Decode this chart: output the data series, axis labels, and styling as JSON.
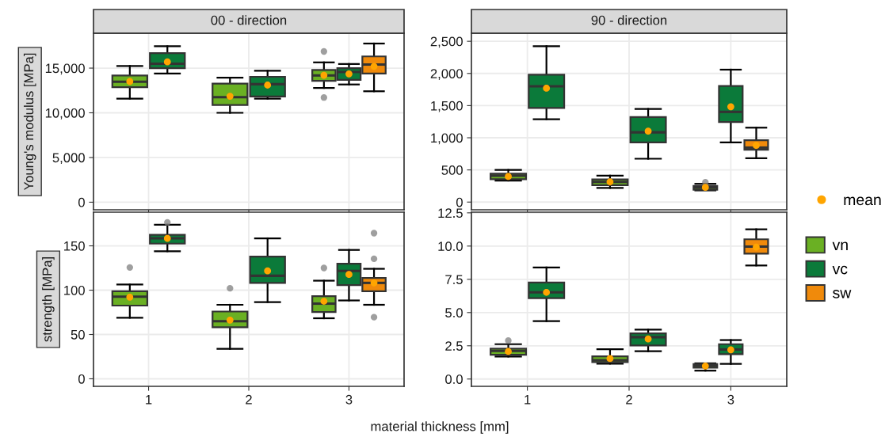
{
  "chart_data": [
    {
      "type": "box",
      "title": "00 - direction",
      "ylabel": "Young's modulus [MPa]",
      "categories": [
        "1",
        "2",
        "3"
      ],
      "tick_labels": "y",
      "grid": true,
      "ylim": [
        -850,
        18900
      ],
      "yticks": [
        {
          "value": 0,
          "label": "0"
        },
        {
          "value": 5000,
          "label": "5,000"
        },
        {
          "value": 10000,
          "label": "10,000"
        },
        {
          "value": 15000,
          "label": "15,000"
        }
      ],
      "series": [
        {
          "type": "scatter",
          "color": "#ffa500",
          "x": [
            "1",
            "1",
            "2",
            "2",
            "3",
            "3",
            "3"
          ],
          "values": [
            13500,
            15700,
            11850,
            13100,
            14200,
            14350,
            15200
          ]
        },
        {
          "color": "#6ab023",
          "boxes": [
            {
              "low": 11590,
              "q1": 12870,
              "median": 13480,
              "q3": 14180,
              "high": 15245
            },
            {
              "low": 10000,
              "q1": 10880,
              "median": 11740,
              "q3": 13260,
              "high": 13930
            },
            {
              "low": 12780,
              "q1": 13570,
              "median": 14180,
              "q3": 14790,
              "high": 15640,
              "outliers": [
                16860,
                11710
              ]
            }
          ]
        },
        {
          "color": "#0b7a3a",
          "boxes": [
            {
              "low": 14390,
              "q1": 15000,
              "median": 15490,
              "q3": 16680,
              "high": 17440
            },
            {
              "low": 11590,
              "q1": 11830,
              "median": 13200,
              "q3": 14030,
              "high": 14700
            },
            {
              "low": 13170,
              "q1": 13690,
              "median": 14570,
              "q3": 15000,
              "high": 15460
            }
          ]
        },
        {
          "color": "#f08a0b",
          "boxes": [
            null,
            null,
            {
              "low": 12410,
              "q1": 14390,
              "median": 15400,
              "q3": 16310,
              "high": 17750
            }
          ]
        }
      ]
    },
    {
      "type": "box",
      "title": "90 - direction",
      "categories": [
        "1",
        "2",
        "3"
      ],
      "tick_labels": "y",
      "grid": true,
      "ylim": [
        -120,
        2625
      ],
      "yticks": [
        {
          "value": 0,
          "label": "0"
        },
        {
          "value": 500,
          "label": "500"
        },
        {
          "value": 1000,
          "label": "1,000"
        },
        {
          "value": 1500,
          "label": "1,500"
        },
        {
          "value": 2000,
          "label": "2,000"
        },
        {
          "value": 2500,
          "label": "2,500"
        }
      ],
      "series": [
        {
          "type": "scatter",
          "color": "#ffa500",
          "x": [
            "1",
            "1",
            "2",
            "2",
            "3",
            "3",
            "3"
          ],
          "values": [
            398,
            1771,
            314,
            1102,
            229,
            1483,
            881
          ]
        },
        {
          "color": "#6ab023",
          "boxes": [
            {
              "low": 335,
              "q1": 356,
              "median": 411,
              "q3": 441,
              "high": 500
            },
            {
              "low": 220,
              "q1": 263,
              "median": 314,
              "q3": 352,
              "high": 411
            },
            {
              "low": 182,
              "q1": 191,
              "median": 225,
              "q3": 250,
              "high": 284,
              "outliers": [
                309
              ]
            }
          ]
        },
        {
          "color": "#0b7a3a",
          "boxes": [
            {
              "low": 1288,
              "q1": 1462,
              "median": 1801,
              "q3": 1979,
              "high": 2424
            },
            {
              "low": 674,
              "q1": 928,
              "median": 1085,
              "q3": 1322,
              "high": 1449
            },
            {
              "low": 928,
              "q1": 1246,
              "median": 1402,
              "q3": 1805,
              "high": 2059
            }
          ]
        },
        {
          "color": "#f08a0b",
          "boxes": [
            null,
            null,
            {
              "low": 682,
              "q1": 813,
              "median": 847,
              "q3": 962,
              "high": 1157
            }
          ]
        }
      ]
    },
    {
      "type": "box",
      "ylabel": "strength [MPa]",
      "xlabel": "material thickness [mm]",
      "categories": [
        "1",
        "2",
        "3"
      ],
      "grid": true,
      "ylim": [
        -8.5,
        188
      ],
      "yticks": [
        0,
        50,
        100,
        150
      ],
      "series": [
        {
          "type": "scatter",
          "color": "#ffa500",
          "x": [
            "1",
            "1",
            "2",
            "2",
            "3",
            "3",
            "3"
          ],
          "values": [
            92.1,
            158.5,
            66.2,
            121.7,
            87.5,
            117.7,
            108.2
          ]
        },
        {
          "color": "#6ab023",
          "boxes": [
            {
              "low": 68.9,
              "q1": 82.6,
              "median": 92.7,
              "q3": 98.8,
              "high": 106.4,
              "outliers": [
                125.6
              ]
            },
            {
              "low": 33.8,
              "q1": 58.2,
              "median": 64.9,
              "q3": 75.9,
              "high": 83.5,
              "outliers": [
                102.1
              ]
            },
            {
              "low": 68.3,
              "q1": 75.3,
              "median": 84.8,
              "q3": 93.3,
              "high": 110.7,
              "outliers": [
                125
              ]
            }
          ]
        },
        {
          "color": "#0b7a3a",
          "boxes": [
            {
              "low": 143.9,
              "q1": 152.5,
              "median": 158.5,
              "q3": 162.5,
              "high": 173.8,
              "outliers": [
                176.5
              ]
            },
            {
              "low": 86.6,
              "q1": 108.2,
              "median": 116.2,
              "q3": 137.8,
              "high": 158.5
            },
            {
              "low": 88.4,
              "q1": 105.8,
              "median": 121.7,
              "q3": 129.9,
              "high": 145.4
            }
          ]
        },
        {
          "color": "#f08a0b",
          "boxes": [
            null,
            null,
            {
              "low": 83.5,
              "q1": 98.8,
              "median": 108.2,
              "q3": 113.7,
              "high": 124.1,
              "outliers": [
                164.3,
                135.4,
                69.5
              ]
            }
          ]
        }
      ]
    },
    {
      "type": "box",
      "categories": [
        "1",
        "2",
        "3"
      ],
      "grid": true,
      "legend": "right",
      "ylim": [
        -0.55,
        12.55
      ],
      "yticks": [
        {
          "value": 0,
          "label": "0.0"
        },
        {
          "value": 2.5,
          "label": "2.5"
        },
        {
          "value": 5,
          "label": "5.0"
        },
        {
          "value": 7.5,
          "label": "7.5"
        },
        {
          "value": 10,
          "label": "10.0"
        },
        {
          "value": 12.5,
          "label": "12.5"
        }
      ],
      "series": [
        {
          "name": "mean",
          "type": "scatter",
          "color": "#ffa500",
          "x": [
            "1",
            "1",
            "2",
            "2",
            "3",
            "3",
            "3"
          ],
          "values": [
            2.07,
            6.52,
            1.54,
            3.01,
            0.98,
            2.2,
            9.92
          ]
        },
        {
          "name": "vn",
          "color": "#6ab023",
          "boxes": [
            {
              "low": 1.69,
              "q1": 1.83,
              "median": 2.11,
              "q3": 2.28,
              "high": 2.62,
              "outliers": [
                2.89
              ]
            },
            {
              "low": 1.16,
              "q1": 1.28,
              "median": 1.42,
              "q3": 1.71,
              "high": 2.24
            },
            {
              "low": 0.63,
              "q1": 0.85,
              "median": 0.98,
              "q3": 1.12,
              "high": 1.18
            }
          ]
        },
        {
          "name": "vc",
          "color": "#0b7a3a",
          "boxes": [
            {
              "low": 4.35,
              "q1": 6.08,
              "median": 6.52,
              "q3": 7.26,
              "high": 8.39
            },
            {
              "low": 2.09,
              "q1": 2.52,
              "median": 3.15,
              "q3": 3.43,
              "high": 3.72
            },
            {
              "low": 1.14,
              "q1": 1.87,
              "median": 2.22,
              "q3": 2.62,
              "high": 2.93
            }
          ]
        },
        {
          "name": "sw",
          "color": "#f08a0b",
          "boxes": [
            null,
            null,
            {
              "low": 8.54,
              "q1": 9.43,
              "median": 9.96,
              "q3": 10.51,
              "high": 11.26
            }
          ]
        }
      ]
    }
  ]
}
